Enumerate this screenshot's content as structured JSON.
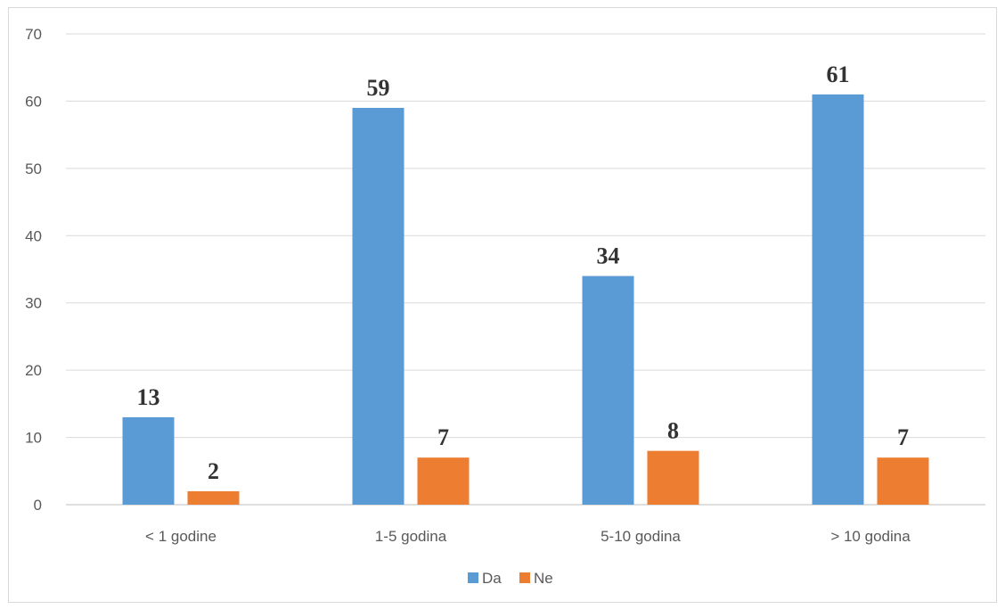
{
  "chart_data": {
    "type": "bar",
    "categories": [
      "< 1 godine",
      "1-5 godina",
      "5-10 godina",
      "> 10 godina"
    ],
    "series": [
      {
        "name": "Da",
        "values": [
          13,
          59,
          34,
          61
        ],
        "color": "#5b9bd5"
      },
      {
        "name": "Ne",
        "values": [
          2,
          7,
          8,
          7
        ],
        "color": "#ed7d31"
      }
    ],
    "ylim": [
      0,
      70
    ],
    "yticks": [
      0,
      10,
      20,
      30,
      40,
      50,
      60,
      70
    ],
    "grid": true,
    "legend_position": "bottom",
    "data_labels": true,
    "title": "",
    "xlabel": "",
    "ylabel": ""
  }
}
